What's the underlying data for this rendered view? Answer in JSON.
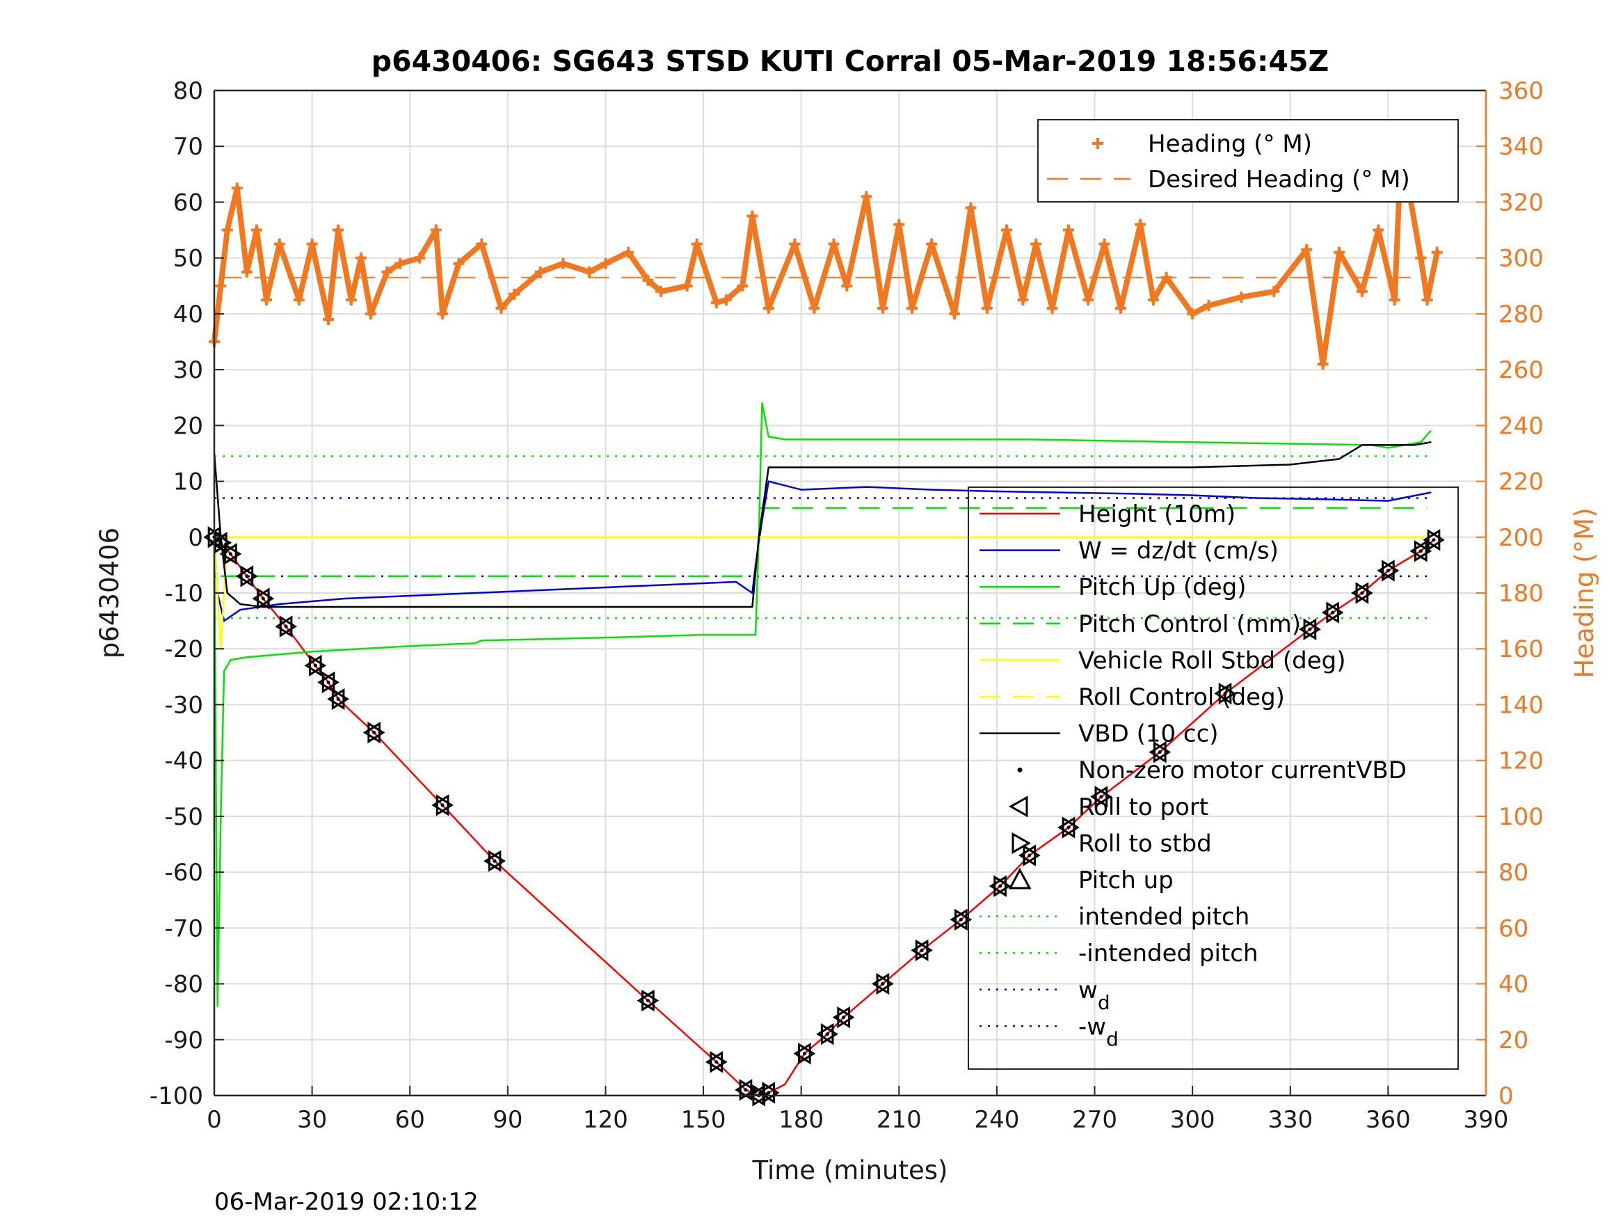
{
  "chart_data": {
    "type": "line",
    "title": "p6430406: SG643 STSD KUTI Corral 05-Mar-2019 18:56:45Z",
    "xlabel": "Time (minutes)",
    "ylabel": "p6430406",
    "y2label": "Heading (°M)",
    "footer": "06-Mar-2019 02:10:12",
    "xlim": [
      0,
      390
    ],
    "ylim": [
      -100,
      80
    ],
    "y2lim": [
      0,
      360
    ],
    "xticks": [
      "0",
      "30",
      "60",
      "90",
      "120",
      "150",
      "180",
      "210",
      "240",
      "270",
      "300",
      "330",
      "360",
      "390"
    ],
    "yticks": [
      "80",
      "70",
      "60",
      "50",
      "40",
      "30",
      "20",
      "10",
      "0",
      "-10",
      "-20",
      "-30",
      "-40",
      "-50",
      "-60",
      "-70",
      "-80",
      "-90",
      "-100"
    ],
    "y2ticks": [
      "360",
      "340",
      "320",
      "300",
      "280",
      "260",
      "240",
      "220",
      "200",
      "180",
      "160",
      "140",
      "120",
      "100",
      "80",
      "60",
      "40",
      "20",
      "0"
    ],
    "grid": true,
    "legend_top": "top-right",
    "legend_main": "right",
    "colors": {
      "heading": "#f07820",
      "height": "#ff0000",
      "w": "#0000e6",
      "pitch": "#00e600",
      "roll": "#ffff00",
      "vbd": "#000000",
      "grid": "#dcdcdc",
      "axis": "#262626"
    },
    "legend_heading": [
      "Heading (° M)",
      "Desired Heading (° M)"
    ],
    "legend_main_entries": [
      {
        "label": "Height (10m)",
        "style": "line",
        "color": "#ff0000"
      },
      {
        "label": "W = dz/dt (cm/s)",
        "style": "line",
        "color": "#0000e6"
      },
      {
        "label": "Pitch Up (deg)",
        "style": "line",
        "color": "#00e600"
      },
      {
        "label": "Pitch Control (mm)",
        "style": "dash",
        "color": "#00e600"
      },
      {
        "label": "Vehicle Roll Stbd (deg)",
        "style": "line",
        "color": "#ffff00"
      },
      {
        "label": "Roll Control (deg)",
        "style": "dash",
        "color": "#ffff00"
      },
      {
        "label": "VBD (10 cc)",
        "style": "line",
        "color": "#000000"
      },
      {
        "label": "Non-zero motor currentVBD",
        "style": "dot",
        "color": "#000000"
      },
      {
        "label": "Roll to port",
        "style": "tri-left",
        "color": "#000000"
      },
      {
        "label": "Roll to stbd",
        "style": "tri-right",
        "color": "#000000"
      },
      {
        "label": "Pitch up",
        "style": "tri-up",
        "color": "#000000"
      },
      {
        "label": "intended pitch",
        "style": "dotted",
        "color": "#00e600"
      },
      {
        "label": "-intended pitch",
        "style": "dotted",
        "color": "#00e600"
      },
      {
        "label": "w",
        "sub": "d",
        "style": "dotted",
        "color": "#0000e6"
      },
      {
        "label": "-w",
        "sub": "d",
        "style": "dotted",
        "color": "#0000e6"
      }
    ],
    "reference_lines": {
      "intended_pitch": 14.5,
      "neg_intended_pitch": -14.5,
      "wd": 7,
      "neg_wd": -7,
      "desired_heading_deg": 293,
      "pitch_control_dive": -7,
      "pitch_control_climb": 5.2,
      "roll_control": 0
    },
    "series": [
      {
        "name": "Height (10m)",
        "x": [
          0,
          2,
          5,
          10,
          15,
          22,
          31,
          35,
          38,
          49,
          70,
          86,
          133,
          154,
          163,
          167,
          170,
          175,
          181,
          188,
          193,
          205,
          217,
          229,
          241,
          250,
          262,
          272,
          290,
          310,
          336,
          343,
          352,
          360,
          370,
          374
        ],
        "y": [
          0,
          -1,
          -3,
          -7,
          -11,
          -16,
          -23,
          -26,
          -29,
          -35,
          -48,
          -58,
          -83,
          -94,
          -99,
          -100,
          -99.5,
          -98,
          -92.5,
          -89,
          -86,
          -80,
          -74,
          -68.5,
          -62.5,
          -57,
          -52,
          -46.5,
          -38.5,
          -28,
          -16.5,
          -13.5,
          -10,
          -6,
          -2.5,
          -0.5
        ]
      },
      {
        "name": "W = dz/dt (cm/s)",
        "x": [
          0,
          1,
          3,
          8,
          20,
          40,
          60,
          80,
          100,
          120,
          140,
          160,
          165,
          166,
          168,
          170,
          180,
          200,
          220,
          240,
          260,
          280,
          300,
          320,
          340,
          360,
          373
        ],
        "y": [
          0,
          -10,
          -15,
          -13,
          -12,
          -11,
          -10.5,
          -10,
          -9.5,
          -9,
          -8.5,
          -8,
          -10,
          -5,
          3,
          10,
          8.5,
          9,
          8.5,
          8.2,
          8,
          7.8,
          7.5,
          7,
          6.8,
          6.5,
          8
        ]
      },
      {
        "name": "Pitch Up (deg)",
        "x": [
          0,
          1,
          2,
          3,
          5,
          10,
          30,
          60,
          80,
          82,
          120,
          150,
          166,
          167,
          168,
          170,
          175,
          200,
          250,
          300,
          355,
          360,
          370,
          373
        ],
        "y": [
          0,
          -84,
          -50,
          -24,
          -22,
          -21.5,
          -20.5,
          -19.5,
          -19,
          -18.5,
          -18,
          -17.5,
          -17.5,
          0,
          24,
          18,
          17.5,
          17.5,
          17.5,
          17,
          16.5,
          16,
          17,
          19
        ]
      },
      {
        "name": "Vehicle Roll Stbd (deg)",
        "x": [
          0,
          2,
          4,
          10,
          50,
          100,
          150,
          166,
          168,
          175,
          200,
          250,
          300,
          350,
          373
        ],
        "y": [
          0,
          -20,
          0,
          0,
          0,
          0,
          0,
          0,
          0,
          0,
          0,
          0,
          0,
          0,
          0
        ]
      },
      {
        "name": "VBD (10 cc)",
        "x": [
          0,
          2,
          4,
          8,
          15,
          30,
          60,
          120,
          150,
          165,
          167,
          170,
          220,
          300,
          330,
          345,
          352,
          368,
          373
        ],
        "y": [
          15,
          0,
          -10,
          -12,
          -12.5,
          -12.5,
          -12.5,
          -12.5,
          -12.5,
          -12.5,
          0,
          12.5,
          12.5,
          12.5,
          13,
          14,
          16.5,
          16.5,
          17
        ]
      },
      {
        "name": "Heading (° M)",
        "x": [
          0,
          2,
          4,
          7,
          10,
          13,
          16,
          20,
          26,
          30,
          35,
          38,
          42,
          45,
          48,
          53,
          57,
          63,
          68,
          70,
          75,
          82,
          88,
          92,
          100,
          107,
          115,
          120,
          127,
          133,
          137,
          145,
          148,
          154,
          157,
          162,
          165,
          170,
          178,
          184,
          190,
          194,
          200,
          205,
          210,
          214,
          220,
          227,
          232,
          237,
          243,
          248,
          252,
          257,
          262,
          268,
          273,
          278,
          284,
          288,
          292,
          300,
          305,
          315,
          325,
          335,
          340,
          345,
          352,
          357,
          362,
          364,
          370,
          372,
          375
        ],
        "y": [
          270,
          290,
          310,
          325,
          295,
          310,
          285,
          305,
          285,
          305,
          278,
          310,
          285,
          300,
          280,
          295,
          298,
          300,
          310,
          280,
          298,
          305,
          282,
          287,
          295,
          298,
          295,
          298,
          302,
          292,
          288,
          290,
          305,
          284,
          285,
          290,
          315,
          282,
          305,
          282,
          305,
          290,
          322,
          282,
          312,
          282,
          305,
          280,
          318,
          282,
          310,
          285,
          305,
          282,
          310,
          285,
          305,
          282,
          312,
          285,
          293,
          280,
          283,
          286,
          288,
          303,
          262,
          302,
          288,
          310,
          285,
          340,
          300,
          285,
          302
        ]
      }
    ],
    "markers": {
      "x": [
        0,
        2,
        5,
        10,
        15,
        22,
        31,
        35,
        38,
        49,
        70,
        86,
        133,
        154,
        163,
        167,
        170,
        181,
        188,
        193,
        205,
        217,
        229,
        241,
        250,
        262,
        272,
        290,
        310,
        336,
        343,
        352,
        360,
        370,
        374
      ],
      "y": [
        0,
        -1,
        -3,
        -7,
        -11,
        -16,
        -23,
        -26,
        -29,
        -35,
        -48,
        -58,
        -83,
        -94,
        -99,
        -100,
        -99.5,
        -92.5,
        -89,
        -86,
        -80,
        -74,
        -68.5,
        -62.5,
        -57,
        -52,
        -46.5,
        -38.5,
        -28,
        -16.5,
        -13.5,
        -10,
        -6,
        -2.5,
        -0.5
      ]
    }
  }
}
